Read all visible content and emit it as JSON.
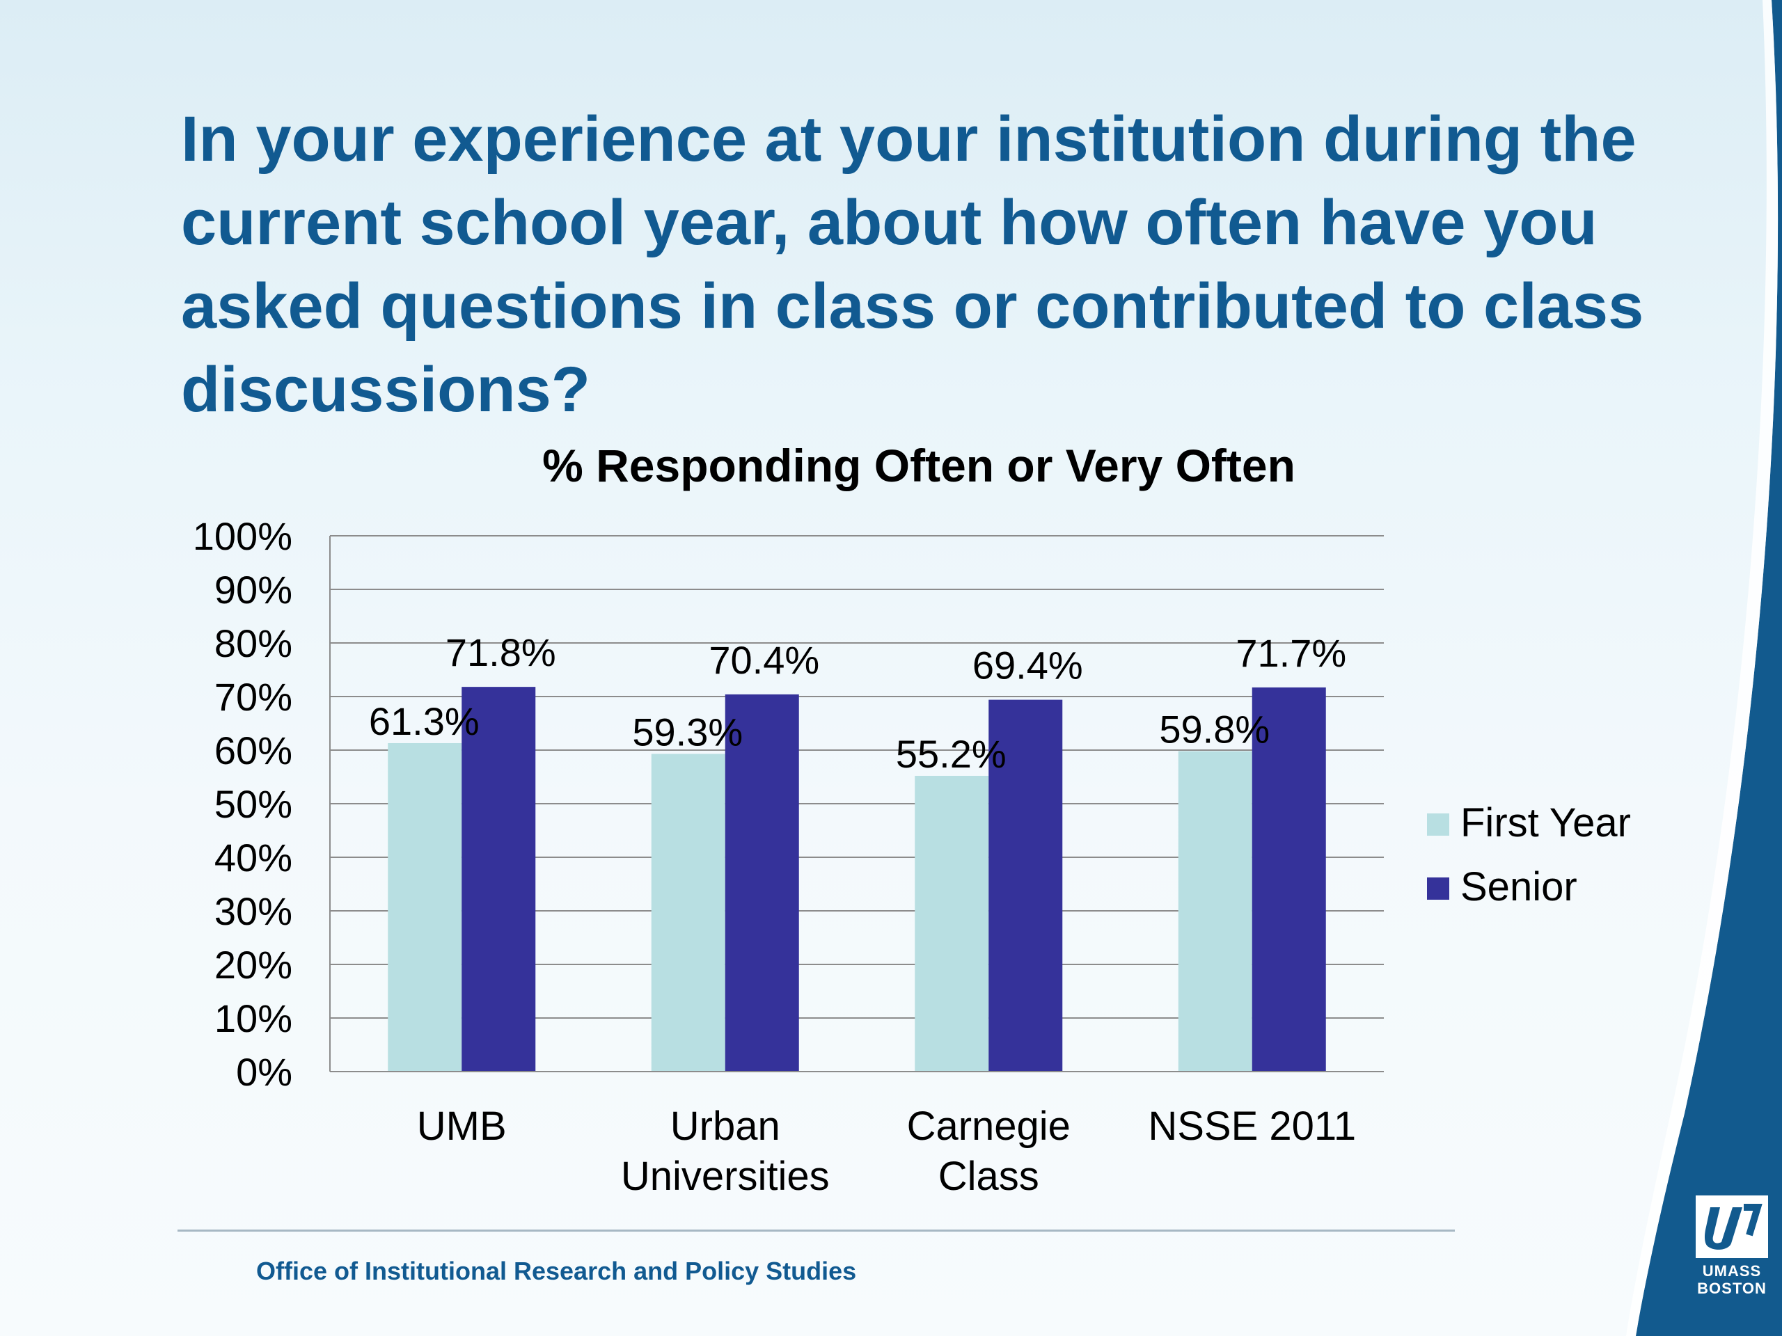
{
  "title": "In your experience at your institution during the current school year, about how often have you asked questions in class or contributed to class discussions?",
  "footer": "Office of Institutional Research and Policy Studies",
  "logo": {
    "text": "UMASS\nBOSTON",
    "icon": "umass-u-mark-icon"
  },
  "colors": {
    "title": "#115a91",
    "first_year": "#b8dfe2",
    "senior": "#35329a",
    "swoosh": "#125a8e"
  },
  "chart_data": {
    "type": "bar",
    "title": "% Responding Often or Very Often",
    "categories": [
      "UMB",
      "Urban Universities",
      "Carnegie Class",
      "NSSE 2011"
    ],
    "category_lines": [
      [
        "UMB"
      ],
      [
        "Urban",
        "Universities"
      ],
      [
        "Carnegie",
        "Class"
      ],
      [
        "NSSE 2011"
      ]
    ],
    "series": [
      {
        "name": "First Year",
        "values": [
          61.3,
          59.3,
          55.2,
          59.8
        ],
        "labels": [
          "61.3%",
          "59.3%",
          "55.2%",
          "59.8%"
        ],
        "color": "#b8dfe2"
      },
      {
        "name": "Senior",
        "values": [
          71.8,
          70.4,
          69.4,
          71.7
        ],
        "labels": [
          "71.8%",
          "70.4%",
          "69.4%",
          "71.7%"
        ],
        "color": "#35329a"
      }
    ],
    "ylim": [
      0,
      100
    ],
    "yticks": [
      "0%",
      "10%",
      "20%",
      "30%",
      "40%",
      "50%",
      "60%",
      "70%",
      "80%",
      "90%",
      "100%"
    ],
    "grid": true,
    "legend": "right"
  }
}
